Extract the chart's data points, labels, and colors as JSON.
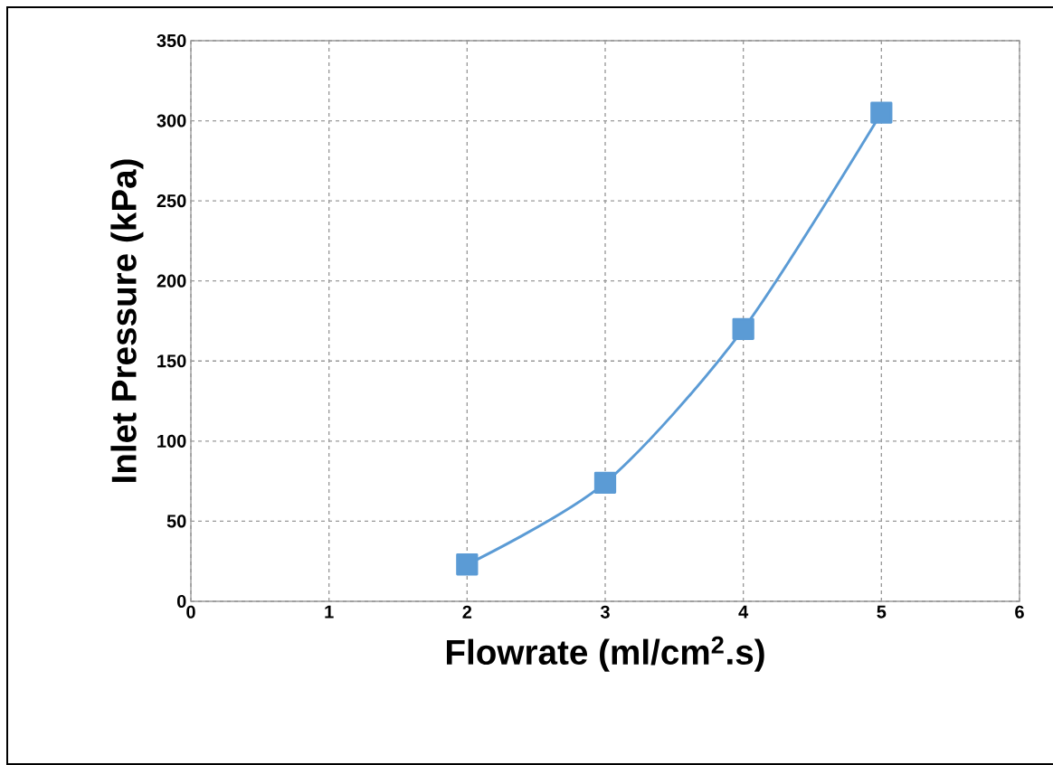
{
  "chart_data": {
    "type": "line",
    "xlabel": "Flowrate (ml/cm$^{2}$.s)",
    "ylabel": "Inlet Pressure (kPa)",
    "x": [
      2,
      3,
      4,
      5
    ],
    "series": [
      {
        "color": "#5b9bd5",
        "values": [
          23,
          74,
          170,
          305
        ]
      }
    ],
    "xlim": [
      0,
      6
    ],
    "xticks": [
      0,
      1,
      2,
      3,
      4,
      5,
      6
    ],
    "ylim": [
      0,
      350
    ],
    "yticks": [
      0,
      50,
      100,
      150,
      200,
      250,
      300,
      350
    ],
    "grid": true,
    "marker": "square",
    "line_style": "solid"
  }
}
